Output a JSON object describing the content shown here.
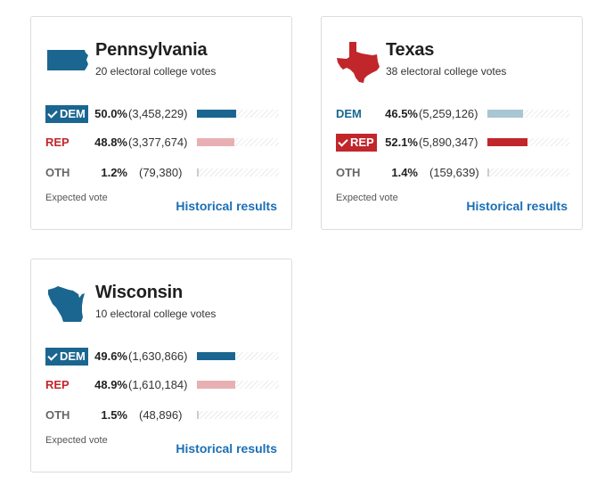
{
  "colors": {
    "dem": "#1a6690",
    "dem_light": "#a8c6d3",
    "rep": "#c1262b",
    "rep_light": "#e8b0b3",
    "oth": "#cccccc",
    "link": "#1a6eb5"
  },
  "cards": [
    {
      "state": "Pennsylvania",
      "icon": "pennsylvania-map-icon",
      "ev": "20 electoral college votes",
      "expected_label": "Expected vote",
      "link_label": "Historical results",
      "rows": [
        {
          "party": "DEM",
          "pct": "50.0%",
          "votes": "(3,458,229)",
          "share": 0.5,
          "winner": true
        },
        {
          "party": "REP",
          "pct": "48.8%",
          "votes": "(3,377,674)",
          "share": 0.488,
          "winner": false
        },
        {
          "party": "OTH",
          "pct": "1.2%",
          "votes": "(79,380)",
          "share": 0.012,
          "winner": false
        }
      ]
    },
    {
      "state": "Texas",
      "icon": "texas-map-icon",
      "ev": "38 electoral college votes",
      "expected_label": "Expected vote",
      "link_label": "Historical results",
      "rows": [
        {
          "party": "DEM",
          "pct": "46.5%",
          "votes": "(5,259,126)",
          "share": 0.465,
          "winner": false
        },
        {
          "party": "REP",
          "pct": "52.1%",
          "votes": "(5,890,347)",
          "share": 0.521,
          "winner": true
        },
        {
          "party": "OTH",
          "pct": "1.4%",
          "votes": "(159,639)",
          "share": 0.014,
          "winner": false
        }
      ]
    },
    {
      "state": "Wisconsin",
      "icon": "wisconsin-map-icon",
      "ev": "10 electoral college votes",
      "expected_label": "Expected vote",
      "link_label": "Historical results",
      "rows": [
        {
          "party": "DEM",
          "pct": "49.6%",
          "votes": "(1,630,866)",
          "share": 0.496,
          "winner": true
        },
        {
          "party": "REP",
          "pct": "48.9%",
          "votes": "(1,610,184)",
          "share": 0.489,
          "winner": false
        },
        {
          "party": "OTH",
          "pct": "1.5%",
          "votes": "(48,896)",
          "share": 0.015,
          "winner": false
        }
      ]
    }
  ]
}
